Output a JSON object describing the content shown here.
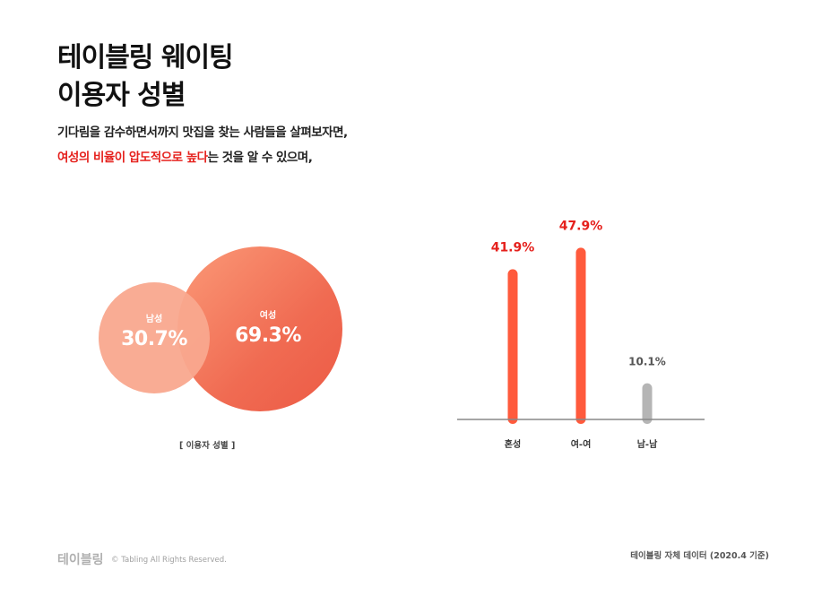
{
  "title": {
    "line1": "테이블링 웨이팅",
    "line2": "이용자 성별"
  },
  "description": {
    "line1": "기다림을 감수하면서까지 맛집을 찾는 사람들을 살펴보자면,",
    "line2_highlight": "여성의 비율이 압도적으로 높다",
    "line2_rest": "는 것을 알 수 있으며,"
  },
  "venn": {
    "male": {
      "label": "남성",
      "value": "30.7%"
    },
    "female": {
      "label": "여성",
      "value": "69.3%"
    },
    "caption": "[ 이용자 성별 ]"
  },
  "chart_data": {
    "type": "bar",
    "categories": [
      "혼성",
      "여-여",
      "남-남"
    ],
    "values": [
      41.9,
      47.9,
      10.1
    ],
    "value_labels": [
      "41.9%",
      "47.9%",
      "10.1%"
    ],
    "colors": [
      "#ff5a3c",
      "#ff5a3c",
      "#b5b5b5"
    ],
    "label_colors": [
      "#e5201c",
      "#e5201c",
      "#555555"
    ],
    "ylim": [
      0,
      50
    ],
    "grid": false
  },
  "footer": {
    "logo": "테이블링",
    "copyright": "© Tabling All Rights Reserved.",
    "source": "테이블링 자체 데이터 (2020.4 기준)"
  }
}
